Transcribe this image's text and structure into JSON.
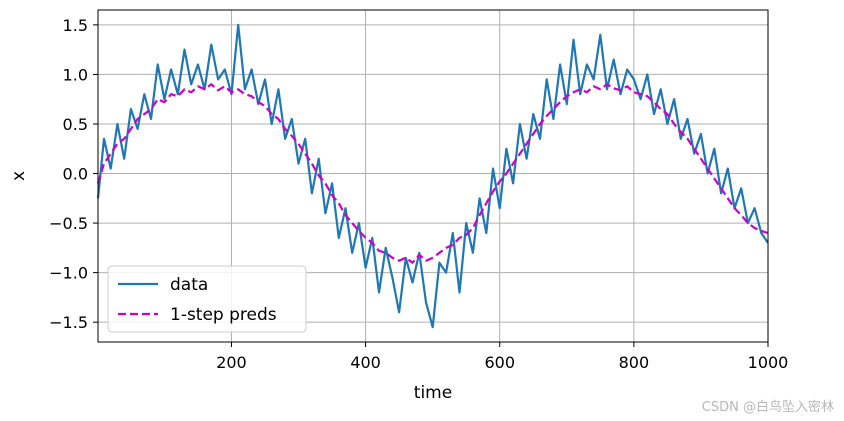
{
  "chart_data": {
    "type": "line",
    "xlabel": "time",
    "ylabel": "x",
    "xlim": [
      1,
      1000
    ],
    "ylim": [
      -1.7,
      1.65
    ],
    "x_ticks": [
      200,
      400,
      600,
      800,
      1000
    ],
    "y_ticks": [
      -1.5,
      -1.0,
      -0.5,
      0.0,
      0.5,
      1.0,
      1.5
    ],
    "x_tick_labels": [
      "200",
      "400",
      "600",
      "800",
      "1000"
    ],
    "y_tick_labels": [
      "−1.5",
      "−1.0",
      "−0.5",
      "0.0",
      "0.5",
      "1.0",
      "1.5"
    ],
    "grid": true,
    "legend_position": "lower-left",
    "series": [
      {
        "name": "data",
        "color": "#1f77b4",
        "style": "solid",
        "x": [
          1,
          10,
          20,
          30,
          40,
          50,
          60,
          70,
          80,
          90,
          100,
          110,
          120,
          130,
          140,
          150,
          160,
          170,
          180,
          190,
          200,
          210,
          220,
          230,
          240,
          250,
          260,
          270,
          280,
          290,
          300,
          310,
          320,
          330,
          340,
          350,
          360,
          370,
          380,
          390,
          400,
          410,
          420,
          430,
          440,
          450,
          460,
          470,
          480,
          490,
          500,
          510,
          520,
          530,
          540,
          550,
          560,
          570,
          580,
          590,
          600,
          610,
          620,
          630,
          640,
          650,
          660,
          670,
          680,
          690,
          700,
          710,
          720,
          730,
          740,
          750,
          760,
          770,
          780,
          790,
          800,
          810,
          820,
          830,
          840,
          850,
          860,
          870,
          880,
          890,
          900,
          910,
          920,
          930,
          940,
          950,
          960,
          970,
          980,
          990,
          1000
        ],
        "y": [
          -0.25,
          0.35,
          0.05,
          0.5,
          0.15,
          0.65,
          0.45,
          0.8,
          0.55,
          1.1,
          0.75,
          1.05,
          0.8,
          1.25,
          0.9,
          1.1,
          0.85,
          1.3,
          0.95,
          1.05,
          0.8,
          1.5,
          0.85,
          1.05,
          0.7,
          0.95,
          0.5,
          0.85,
          0.35,
          0.55,
          0.1,
          0.35,
          -0.2,
          0.15,
          -0.4,
          -0.1,
          -0.65,
          -0.35,
          -0.8,
          -0.5,
          -0.95,
          -0.65,
          -1.2,
          -0.75,
          -1.05,
          -1.4,
          -0.85,
          -1.1,
          -0.8,
          -1.3,
          -1.55,
          -0.9,
          -1.0,
          -0.6,
          -1.2,
          -0.5,
          -0.8,
          -0.25,
          -0.6,
          0.05,
          -0.35,
          0.25,
          -0.1,
          0.5,
          0.15,
          0.6,
          0.35,
          0.95,
          0.55,
          1.1,
          0.7,
          1.35,
          0.8,
          1.1,
          0.95,
          1.4,
          0.85,
          1.15,
          0.8,
          1.05,
          0.95,
          0.75,
          1.0,
          0.6,
          0.85,
          0.5,
          0.75,
          0.35,
          0.55,
          0.2,
          0.4,
          0.0,
          0.25,
          -0.2,
          0.05,
          -0.35,
          -0.15,
          -0.5,
          -0.35,
          -0.6,
          -0.7
        ]
      },
      {
        "name": "1-step preds",
        "color": "#cc00cc",
        "style": "dashed",
        "x": [
          1,
          10,
          20,
          30,
          40,
          50,
          60,
          70,
          80,
          90,
          100,
          110,
          120,
          130,
          140,
          150,
          160,
          170,
          180,
          190,
          200,
          210,
          220,
          230,
          240,
          250,
          260,
          270,
          280,
          290,
          300,
          310,
          320,
          330,
          340,
          350,
          360,
          370,
          380,
          390,
          400,
          410,
          420,
          430,
          440,
          450,
          460,
          470,
          480,
          490,
          500,
          510,
          520,
          530,
          540,
          550,
          560,
          570,
          580,
          590,
          600,
          610,
          620,
          630,
          640,
          650,
          660,
          670,
          680,
          690,
          700,
          710,
          720,
          730,
          740,
          750,
          760,
          770,
          780,
          790,
          800,
          810,
          820,
          830,
          840,
          850,
          860,
          870,
          880,
          890,
          900,
          910,
          920,
          930,
          940,
          950,
          960,
          970,
          980,
          990,
          1000
        ],
        "y": [
          -0.1,
          0.1,
          0.2,
          0.3,
          0.35,
          0.45,
          0.55,
          0.6,
          0.65,
          0.75,
          0.72,
          0.8,
          0.78,
          0.85,
          0.82,
          0.88,
          0.85,
          0.9,
          0.84,
          0.88,
          0.82,
          0.85,
          0.8,
          0.78,
          0.72,
          0.68,
          0.6,
          0.55,
          0.45,
          0.38,
          0.3,
          0.2,
          0.1,
          -0.02,
          -0.1,
          -0.22,
          -0.3,
          -0.42,
          -0.5,
          -0.58,
          -0.65,
          -0.7,
          -0.78,
          -0.8,
          -0.85,
          -0.88,
          -0.85,
          -0.9,
          -0.82,
          -0.88,
          -0.85,
          -0.8,
          -0.75,
          -0.72,
          -0.65,
          -0.62,
          -0.55,
          -0.42,
          -0.3,
          -0.18,
          -0.08,
          0.0,
          0.1,
          0.2,
          0.3,
          0.4,
          0.5,
          0.58,
          0.65,
          0.72,
          0.78,
          0.82,
          0.85,
          0.82,
          0.88,
          0.85,
          0.9,
          0.86,
          0.84,
          0.88,
          0.82,
          0.8,
          0.78,
          0.72,
          0.65,
          0.6,
          0.5,
          0.42,
          0.35,
          0.25,
          0.15,
          0.05,
          -0.05,
          -0.15,
          -0.25,
          -0.35,
          -0.42,
          -0.5,
          -0.55,
          -0.58,
          -0.6
        ]
      }
    ]
  },
  "watermark": "CSDN @白鸟坠入密林"
}
